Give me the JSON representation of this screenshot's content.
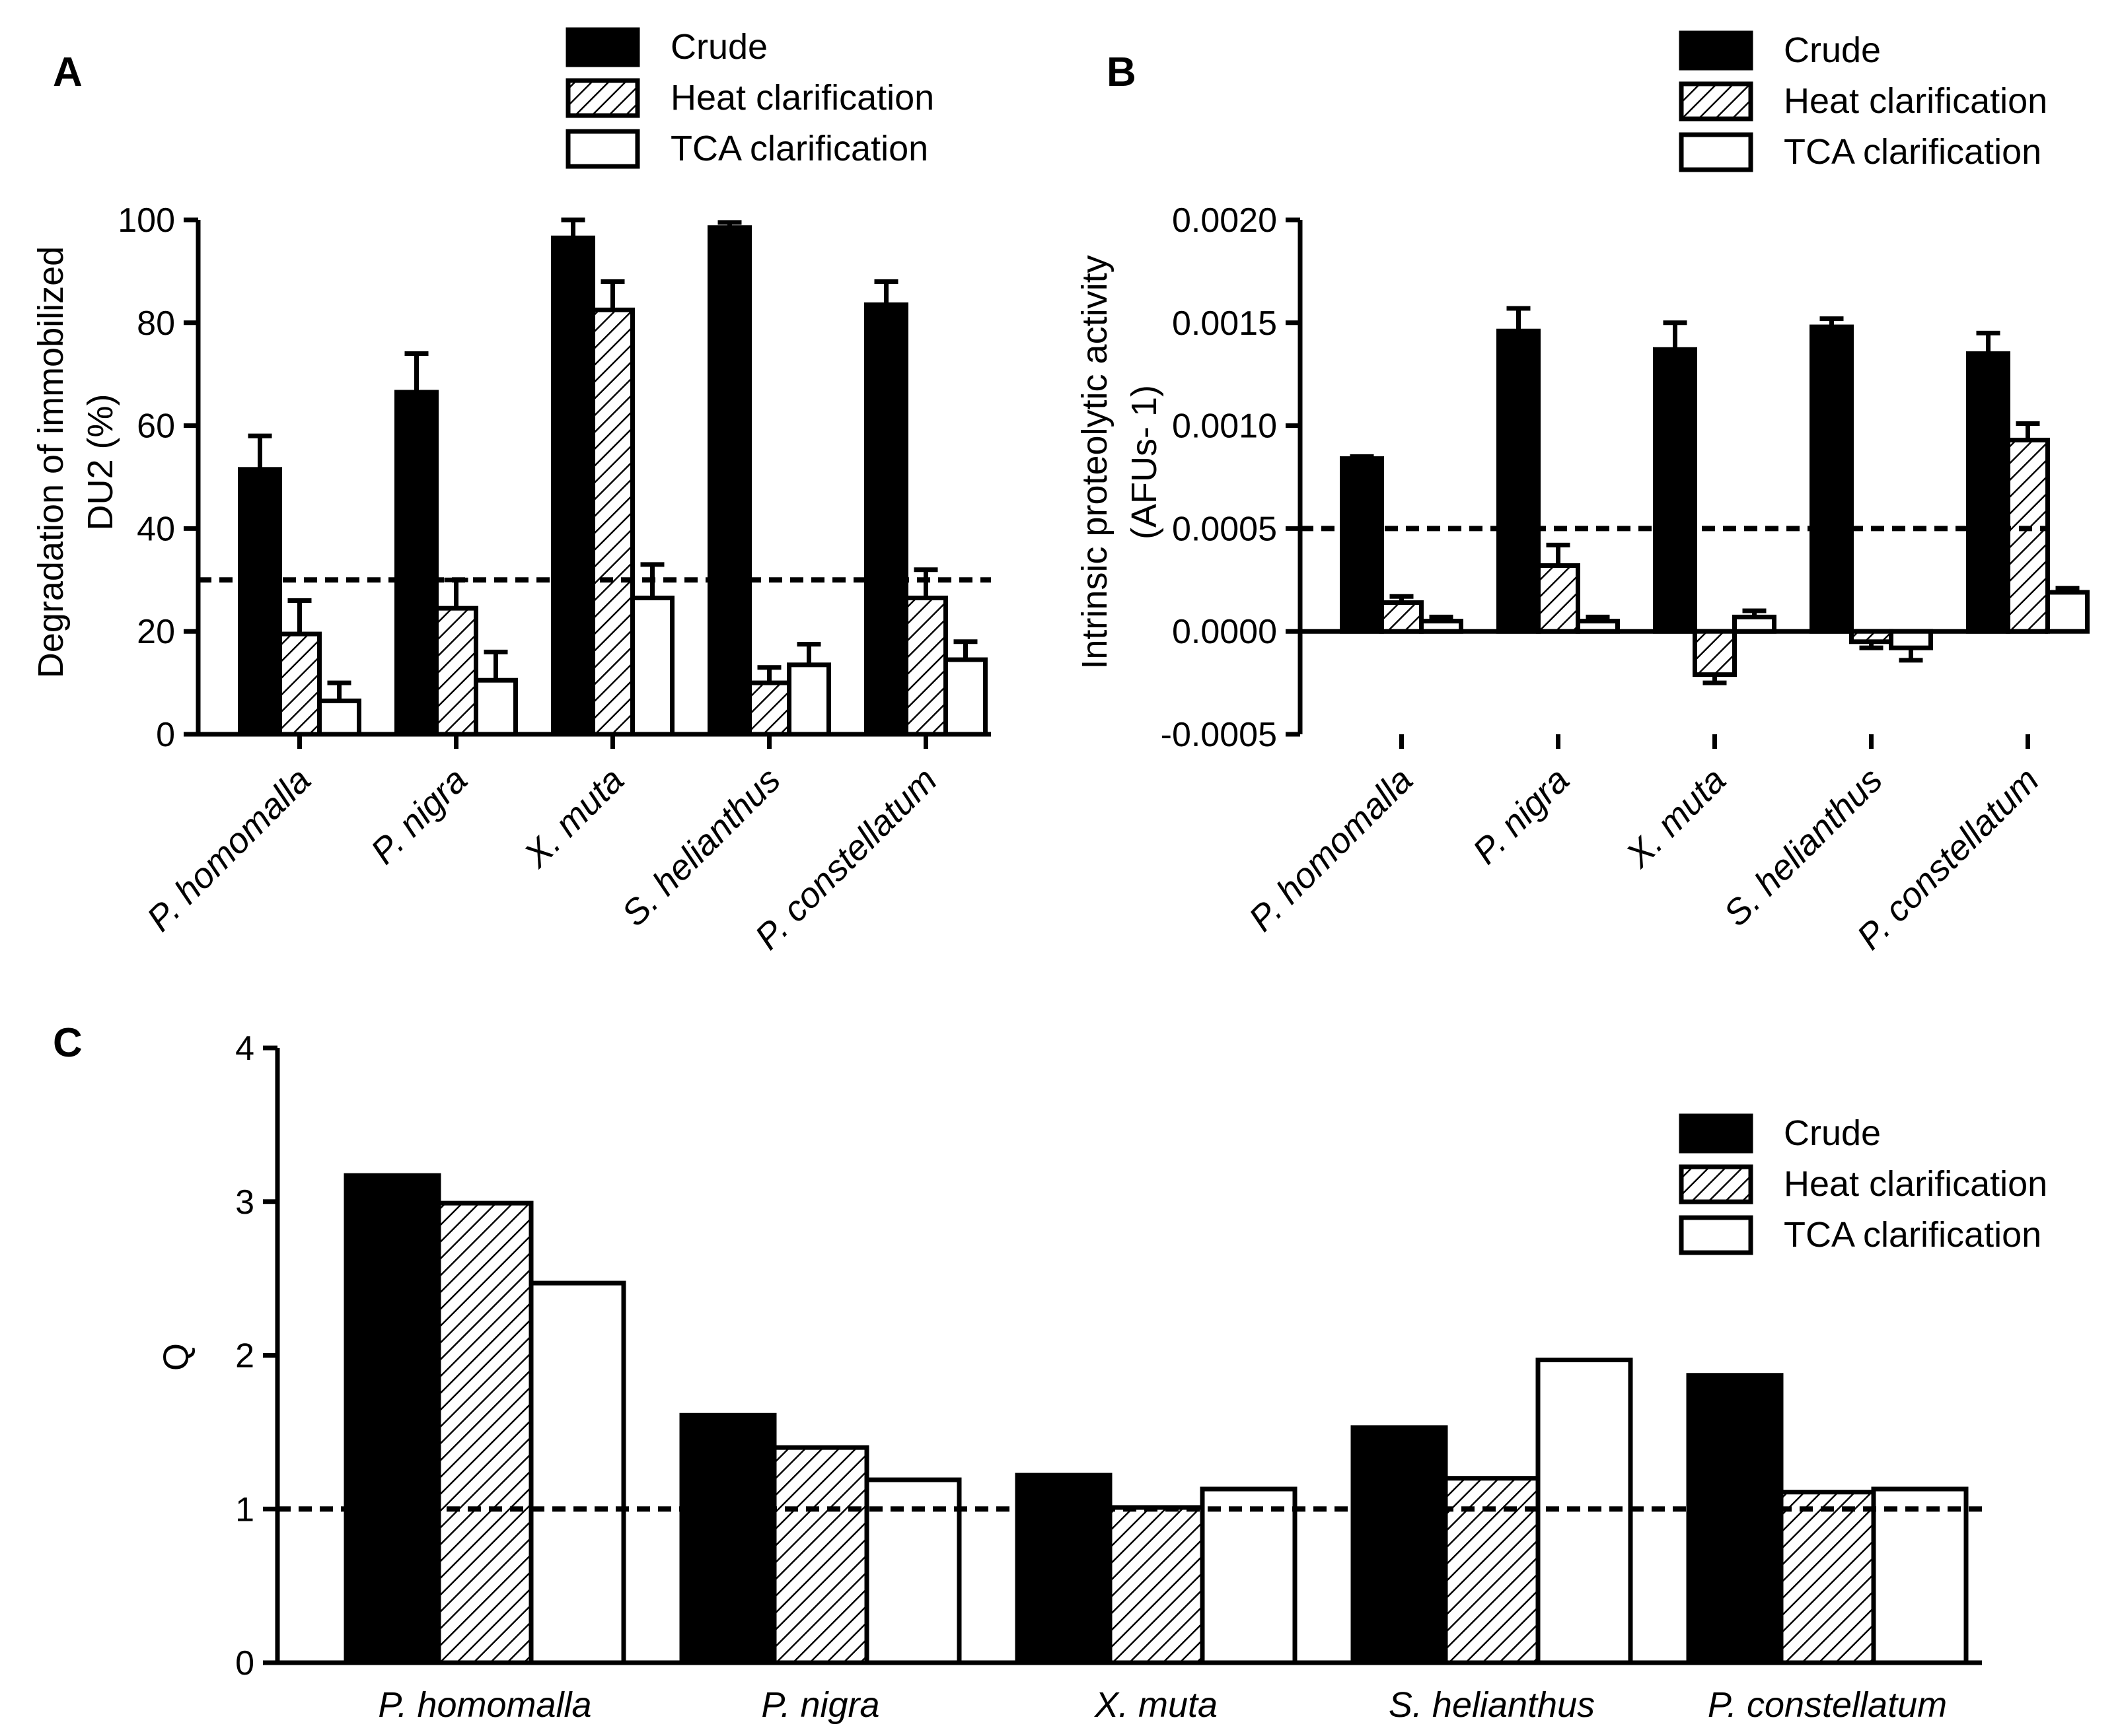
{
  "figure": {
    "panel_labels": [
      "A",
      "B",
      "C"
    ],
    "legend_entries": [
      "Crude",
      "Heat clarification",
      "TCA clarification"
    ]
  },
  "colors": {
    "crude": "#000000",
    "heat": "#ffffff",
    "tca": "#ffffff",
    "axis": "#000000"
  },
  "chart_data": [
    {
      "id": "A",
      "type": "bar",
      "title": "",
      "xlabel": "",
      "ylabel": "Degradation of immobilized DU2 (%)",
      "ylabel_lines": [
        "Degradation of immobilized",
        "DU2 (%)"
      ],
      "categories": [
        "P. homomalla",
        "P. nigra",
        "X. muta",
        "S. helianthus",
        "P. constellatum"
      ],
      "series": [
        {
          "name": "Crude",
          "values": [
            51.5,
            66.5,
            96.5,
            98.5,
            83.5
          ],
          "errors": [
            6.5,
            7.5,
            3.5,
            1.0,
            4.5
          ]
        },
        {
          "name": "Heat clarification",
          "values": [
            19.5,
            24.5,
            82.5,
            10.0,
            26.5
          ],
          "errors": [
            6.5,
            5.5,
            5.5,
            3.0,
            5.5
          ]
        },
        {
          "name": "TCA clarification",
          "values": [
            6.5,
            10.5,
            26.5,
            13.5,
            14.5
          ],
          "errors": [
            3.5,
            5.5,
            6.5,
            4.0,
            3.5
          ]
        }
      ],
      "ylim": [
        0,
        100
      ],
      "yticks": [
        0,
        20,
        40,
        60,
        80,
        100
      ],
      "ytick_labels": [
        "0",
        "20",
        "40",
        "60",
        "80",
        "100"
      ],
      "reference_line": 30,
      "legend_position": "top"
    },
    {
      "id": "B",
      "type": "bar",
      "title": "",
      "xlabel": "",
      "ylabel": "Intrinsic proteolytic activity (AFUs- 1)",
      "ylabel_lines": [
        "Intrinsic proteolytic activity",
        "(AFUs- 1)"
      ],
      "categories": [
        "P. homomalla",
        "P. nigra",
        "X. muta",
        "S. helianthus",
        "P. constellatum"
      ],
      "series": [
        {
          "name": "Crude",
          "values": [
            0.00084,
            0.00146,
            0.00137,
            0.00148,
            0.00135
          ],
          "errors": [
            1e-05,
            0.00011,
            0.00013,
            4e-05,
            0.0001
          ]
        },
        {
          "name": "Heat clarification",
          "values": [
            0.00014,
            0.00032,
            -0.00021,
            -5e-05,
            0.00093
          ],
          "errors": [
            3e-05,
            0.0001,
            4e-05,
            3e-05,
            8e-05
          ]
        },
        {
          "name": "TCA clarification",
          "values": [
            5e-05,
            5e-05,
            7e-05,
            -8e-05,
            0.00019
          ],
          "errors": [
            2e-05,
            2e-05,
            3e-05,
            6e-05,
            2e-05
          ]
        }
      ],
      "ylim": [
        -0.0005,
        0.002
      ],
      "yticks": [
        -0.0005,
        0.0,
        0.0005,
        0.001,
        0.0015,
        0.002
      ],
      "ytick_labels": [
        "-0.0005",
        "0.0000",
        "0.0005",
        "0.0010",
        "0.0015",
        "0.0020"
      ],
      "reference_line": 0.0005,
      "legend_position": "top-right"
    },
    {
      "id": "C",
      "type": "bar",
      "title": "",
      "xlabel": "",
      "ylabel": "Q",
      "categories": [
        "P. homomalla",
        "P. nigra",
        "X. muta",
        "S. helianthus",
        "P. constellatum"
      ],
      "series": [
        {
          "name": "Crude",
          "values": [
            3.17,
            1.61,
            1.22,
            1.53,
            1.87
          ]
        },
        {
          "name": "Heat clarification",
          "values": [
            2.99,
            1.4,
            1.01,
            1.2,
            1.11
          ]
        },
        {
          "name": "TCA clarification",
          "values": [
            2.47,
            1.19,
            1.13,
            1.97,
            1.13
          ]
        }
      ],
      "ylim": [
        0,
        4
      ],
      "yticks": [
        0,
        1,
        2,
        3,
        4
      ],
      "ytick_labels": [
        "0",
        "1",
        "2",
        "3",
        "4"
      ],
      "reference_line": 1,
      "legend_position": "right"
    }
  ]
}
